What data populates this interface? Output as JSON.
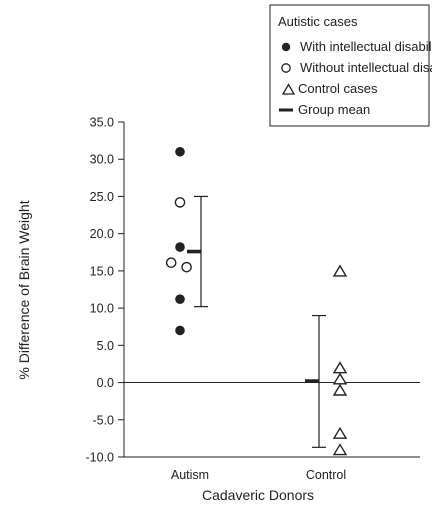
{
  "chart_data": {
    "type": "scatter",
    "xlabel": "Cadaveric Donors",
    "ylabel": "% Difference of Brain Weight",
    "ylim": [
      -10,
      35
    ],
    "yticks": [
      "35.0",
      "30.0",
      "25.0",
      "20.0",
      "15.0",
      "10.0",
      "5.0",
      "0.0",
      "-5.0",
      "-10.0"
    ],
    "categories": [
      "Autism",
      "Control"
    ],
    "legend": {
      "position": "top-right",
      "heading": "Autistic cases",
      "items": [
        {
          "label": "With intellectual disability",
          "marker": "filled-circle"
        },
        {
          "label": "Without intellectual disability",
          "marker": "open-circle"
        },
        {
          "label": "Control cases",
          "marker": "open-triangle"
        },
        {
          "label": "Group mean",
          "marker": "bar"
        }
      ]
    },
    "series": [
      {
        "category": "Autism",
        "marker": "filled-circle",
        "x": 0.0,
        "y": [
          31.0,
          18.2,
          11.2,
          7.0
        ]
      },
      {
        "category": "Autism",
        "marker": "open-circle",
        "x": [
          0.0,
          -0.08,
          0.06
        ],
        "y": [
          24.2,
          16.1,
          15.5
        ]
      },
      {
        "category": "Control",
        "marker": "open-triangle",
        "x": 0.0,
        "y": [
          15.0,
          2.0,
          0.5,
          -1.0,
          -6.8,
          -9.0
        ]
      }
    ],
    "group_stats": [
      {
        "category": "Autism",
        "mean": 17.6,
        "upper": 25.0,
        "lower": 10.2
      },
      {
        "category": "Control",
        "mean": 0.2,
        "upper": 9.0,
        "lower": -8.7
      }
    ],
    "reference_line": 0
  }
}
